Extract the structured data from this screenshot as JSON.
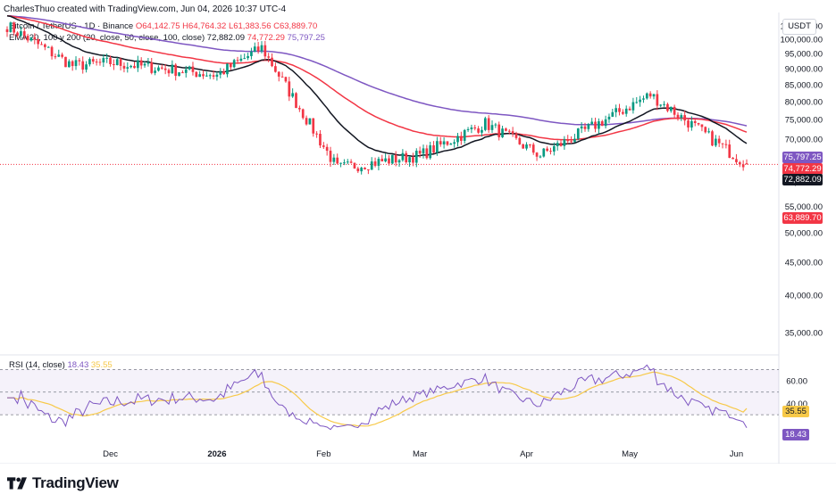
{
  "header": {
    "creator": "CharlesThuo created with TradingView.com, Jun 04, 2026 10:37 UTC-4",
    "symbol": "Bitcoin / TetherUS · 1D · Binance",
    "open": "O64,142.75",
    "high": "H64,764.32",
    "low": "L61,383.56",
    "close": "C63,889.70",
    "ema_title": "EMA 20, 100 y 200 (20, close, 50, close, 100, close)",
    "ema_values": [
      "72,882.09",
      "74,772.29",
      "75,797.25"
    ],
    "currency": "USDT"
  },
  "rsi": {
    "title": "RSI (14, close)",
    "value": "18.43",
    "ma_value": "35.55",
    "levels": [
      70,
      50,
      30
    ],
    "axis_labels": [
      "60.00",
      "40.00"
    ]
  },
  "price_tags": [
    {
      "label": "75,797.25",
      "color": "#7e57c2"
    },
    {
      "label": "74,772.29",
      "color": "#f23645"
    },
    {
      "label": "72,882.09",
      "color": "#131722"
    },
    {
      "label": "63,889.70",
      "color": "#f23645"
    }
  ],
  "rsi_tags": [
    {
      "label": "35.55",
      "color": "#f7c948",
      "text": "#131722"
    },
    {
      "label": "18.43",
      "color": "#7e57c2",
      "text": "#ffffff"
    }
  ],
  "time_labels": [
    "Dec",
    "2026",
    "Feb",
    "Mar",
    "Apr",
    "May",
    "Jun"
  ],
  "logo_text": "TradingView",
  "colors": {
    "up": "#089981",
    "down": "#f23645",
    "ema20": "#131722",
    "ema50": "#f23645",
    "ema100": "#7e57c2",
    "rsi": "#7e57c2",
    "rsi_ma": "#f7c948"
  },
  "chart_data": {
    "type": "candlestick",
    "price_axis": {
      "scale": "log",
      "ticks": [
        105000,
        100000,
        95000,
        90000,
        85000,
        80000,
        75000,
        70000,
        65000,
        60000,
        55000,
        50000,
        45000,
        40000,
        35000
      ],
      "tick_labels": [
        "105,000.00",
        "100,000.00",
        "95,000.00",
        "90,000.00",
        "85,000.00",
        "80,000.00",
        "75,000.00",
        "70,000.00",
        "65,000.00",
        "60,000.00",
        "55,000.00",
        "50,000.00",
        "45,000.00",
        "40,000.00",
        "35,000.00"
      ]
    },
    "price_key_points": [
      {
        "date": "2025-11",
        "close": 105000
      },
      {
        "date": "2025-11-20",
        "close": 91000
      },
      {
        "date": "2025-12",
        "close": 92000
      },
      {
        "date": "2026-01-01",
        "close": 88000
      },
      {
        "date": "2026-01-14",
        "close": 97000
      },
      {
        "date": "2026-02-05",
        "close": 63000
      },
      {
        "date": "2026-03-01",
        "close": 66000
      },
      {
        "date": "2026-03-20",
        "close": 74000
      },
      {
        "date": "2026-04-05",
        "close": 66000
      },
      {
        "date": "2026-05-07",
        "close": 82000
      },
      {
        "date": "2026-06-04",
        "close": 63889.7
      }
    ],
    "last_price": 63889.7,
    "ema20_last": 72882.09,
    "ema50_last": 74772.29,
    "ema100_last": 75797.25,
    "rsi_last": 18.43,
    "rsi_ma_last": 35.55
  }
}
